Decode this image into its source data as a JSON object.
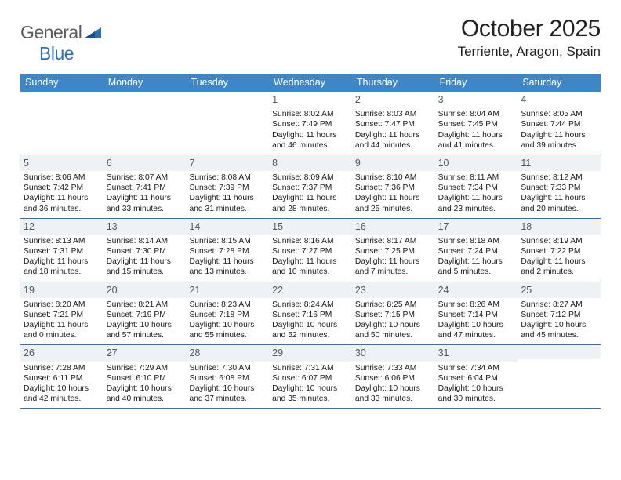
{
  "logo": {
    "part1": "General",
    "part2": "Blue"
  },
  "title": "October 2025",
  "location": "Terriente, Aragon, Spain",
  "colors": {
    "header_bg": "#3f86c7",
    "band_bg": "#eef2f5",
    "rule": "#3f6e9a",
    "logo_gray": "#5a5a5a",
    "logo_blue": "#2f6fb0"
  },
  "dow": [
    "Sunday",
    "Monday",
    "Tuesday",
    "Wednesday",
    "Thursday",
    "Friday",
    "Saturday"
  ],
  "weeks": [
    [
      null,
      null,
      null,
      {
        "n": "1",
        "sr": "8:02 AM",
        "ss": "7:49 PM",
        "dh": "11",
        "dm": "46"
      },
      {
        "n": "2",
        "sr": "8:03 AM",
        "ss": "7:47 PM",
        "dh": "11",
        "dm": "44"
      },
      {
        "n": "3",
        "sr": "8:04 AM",
        "ss": "7:45 PM",
        "dh": "11",
        "dm": "41"
      },
      {
        "n": "4",
        "sr": "8:05 AM",
        "ss": "7:44 PM",
        "dh": "11",
        "dm": "39"
      }
    ],
    [
      {
        "n": "5",
        "sr": "8:06 AM",
        "ss": "7:42 PM",
        "dh": "11",
        "dm": "36"
      },
      {
        "n": "6",
        "sr": "8:07 AM",
        "ss": "7:41 PM",
        "dh": "11",
        "dm": "33"
      },
      {
        "n": "7",
        "sr": "8:08 AM",
        "ss": "7:39 PM",
        "dh": "11",
        "dm": "31"
      },
      {
        "n": "8",
        "sr": "8:09 AM",
        "ss": "7:37 PM",
        "dh": "11",
        "dm": "28"
      },
      {
        "n": "9",
        "sr": "8:10 AM",
        "ss": "7:36 PM",
        "dh": "11",
        "dm": "25"
      },
      {
        "n": "10",
        "sr": "8:11 AM",
        "ss": "7:34 PM",
        "dh": "11",
        "dm": "23"
      },
      {
        "n": "11",
        "sr": "8:12 AM",
        "ss": "7:33 PM",
        "dh": "11",
        "dm": "20"
      }
    ],
    [
      {
        "n": "12",
        "sr": "8:13 AM",
        "ss": "7:31 PM",
        "dh": "11",
        "dm": "18"
      },
      {
        "n": "13",
        "sr": "8:14 AM",
        "ss": "7:30 PM",
        "dh": "11",
        "dm": "15"
      },
      {
        "n": "14",
        "sr": "8:15 AM",
        "ss": "7:28 PM",
        "dh": "11",
        "dm": "13"
      },
      {
        "n": "15",
        "sr": "8:16 AM",
        "ss": "7:27 PM",
        "dh": "11",
        "dm": "10"
      },
      {
        "n": "16",
        "sr": "8:17 AM",
        "ss": "7:25 PM",
        "dh": "11",
        "dm": "7"
      },
      {
        "n": "17",
        "sr": "8:18 AM",
        "ss": "7:24 PM",
        "dh": "11",
        "dm": "5"
      },
      {
        "n": "18",
        "sr": "8:19 AM",
        "ss": "7:22 PM",
        "dh": "11",
        "dm": "2"
      }
    ],
    [
      {
        "n": "19",
        "sr": "8:20 AM",
        "ss": "7:21 PM",
        "dh": "11",
        "dm": "0"
      },
      {
        "n": "20",
        "sr": "8:21 AM",
        "ss": "7:19 PM",
        "dh": "10",
        "dm": "57"
      },
      {
        "n": "21",
        "sr": "8:23 AM",
        "ss": "7:18 PM",
        "dh": "10",
        "dm": "55"
      },
      {
        "n": "22",
        "sr": "8:24 AM",
        "ss": "7:16 PM",
        "dh": "10",
        "dm": "52"
      },
      {
        "n": "23",
        "sr": "8:25 AM",
        "ss": "7:15 PM",
        "dh": "10",
        "dm": "50"
      },
      {
        "n": "24",
        "sr": "8:26 AM",
        "ss": "7:14 PM",
        "dh": "10",
        "dm": "47"
      },
      {
        "n": "25",
        "sr": "8:27 AM",
        "ss": "7:12 PM",
        "dh": "10",
        "dm": "45"
      }
    ],
    [
      {
        "n": "26",
        "sr": "7:28 AM",
        "ss": "6:11 PM",
        "dh": "10",
        "dm": "42"
      },
      {
        "n": "27",
        "sr": "7:29 AM",
        "ss": "6:10 PM",
        "dh": "10",
        "dm": "40"
      },
      {
        "n": "28",
        "sr": "7:30 AM",
        "ss": "6:08 PM",
        "dh": "10",
        "dm": "37"
      },
      {
        "n": "29",
        "sr": "7:31 AM",
        "ss": "6:07 PM",
        "dh": "10",
        "dm": "35"
      },
      {
        "n": "30",
        "sr": "7:33 AM",
        "ss": "6:06 PM",
        "dh": "10",
        "dm": "33"
      },
      {
        "n": "31",
        "sr": "7:34 AM",
        "ss": "6:04 PM",
        "dh": "10",
        "dm": "30"
      },
      null
    ]
  ]
}
